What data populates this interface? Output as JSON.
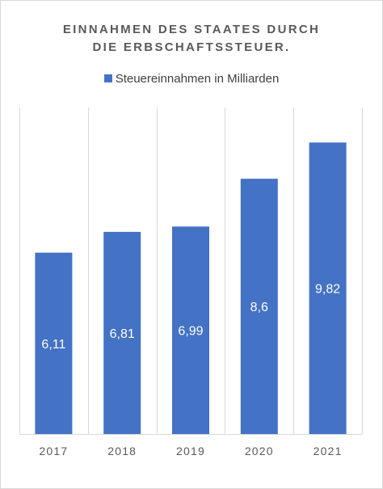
{
  "chart_data": {
    "type": "bar",
    "title_lines": [
      "EINNAHMEN DES STAATES DURCH",
      "DIE ERBSCHAFTSSTEUER."
    ],
    "categories": [
      "2017",
      "2018",
      "2019",
      "2020",
      "2021"
    ],
    "series": [
      {
        "name": "Steuereinnahmen in Milliarden",
        "values": [
          6.11,
          6.81,
          6.99,
          8.6,
          9.82
        ],
        "labels": [
          "6,11",
          "6,81",
          "6,99",
          "8,6",
          "9,82"
        ]
      }
    ],
    "ylim": [
      0,
      11
    ],
    "grid": "vertical",
    "legend_position": "top",
    "data_labels": "inside",
    "colors": {
      "bar": "#4472c4",
      "label": "#ffffff",
      "grid": "#d9d9d9",
      "title": "#595959",
      "tick": "#595959"
    }
  }
}
